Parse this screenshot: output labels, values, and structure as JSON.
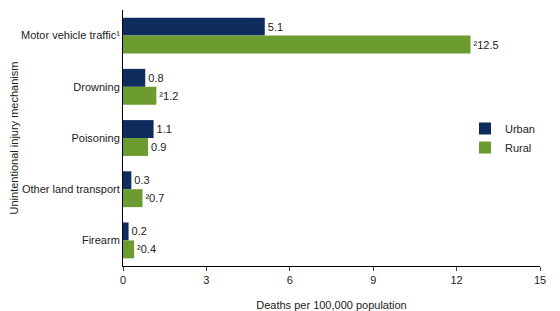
{
  "chart_data": {
    "type": "bar",
    "orientation": "horizontal",
    "categories": [
      "Motor vehicle traffic¹",
      "Drowning",
      "Poisoning",
      "Other land transport",
      "Firearm"
    ],
    "series": [
      {
        "name": "Urban",
        "color": "#0e2c5e",
        "values": [
          5.1,
          0.8,
          1.1,
          0.3,
          0.2
        ]
      },
      {
        "name": "Rural",
        "color": "#6c9b30",
        "values": [
          12.5,
          1.2,
          0.9,
          0.7,
          0.4
        ],
        "value_labels": [
          "²12.5",
          "²1.2",
          "0.9",
          "²0.7",
          "²0.4"
        ]
      }
    ],
    "xlabel": "Deaths per 100,000 population",
    "ylabel": "Unintentional injury mechanism",
    "xlim": [
      0,
      15
    ],
    "xticks": [
      0,
      3,
      6,
      9,
      12,
      15
    ],
    "grid": false,
    "legend": "right",
    "data_labels": true
  }
}
